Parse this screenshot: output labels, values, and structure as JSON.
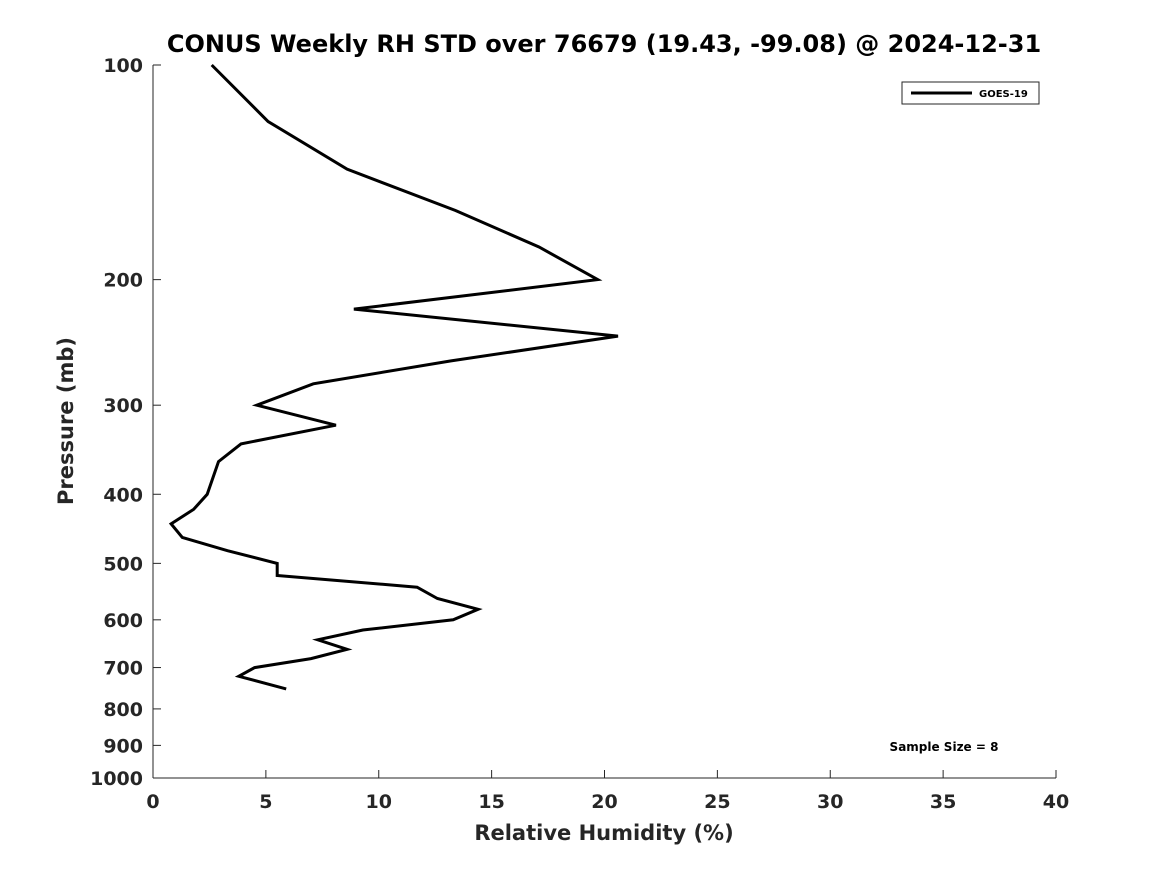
{
  "chart_data": {
    "type": "line",
    "title": "CONUS Weekly RH STD over 76679 (19.43, -99.08) @ 2024-12-31",
    "xlabel": "Relative Humidity (%)",
    "ylabel": "Pressure (mb)",
    "xlim": [
      0,
      40
    ],
    "ylim": [
      100,
      1000
    ],
    "yscale": "log",
    "y_reversed": true,
    "grid": false,
    "xticks": [
      "0",
      "5",
      "10",
      "15",
      "20",
      "25",
      "30",
      "35",
      "40"
    ],
    "yticks": [
      "100",
      "200",
      "300",
      "400",
      "500",
      "600",
      "700",
      "800",
      "900",
      "1000"
    ],
    "legend_position": "top-right",
    "series": [
      {
        "name": "GOES-19",
        "color": "#000000",
        "x": [
          2.6,
          5.1,
          8.6,
          13.4,
          17.1,
          19.7,
          8.9,
          20.6,
          13.2,
          7.1,
          4.6,
          8.1,
          3.9,
          2.9,
          2.4,
          1.8,
          0.8,
          1.3,
          3.3,
          5.5,
          5.5,
          11.7,
          12.6,
          14.4,
          13.3,
          9.3,
          7.3,
          8.6,
          7.0,
          4.5,
          3.8,
          5.9
        ],
        "y": [
          100,
          120,
          140,
          160,
          180,
          200,
          220,
          240,
          260,
          280,
          300,
          320,
          340,
          360,
          400,
          420,
          440,
          460,
          480,
          500,
          520,
          540,
          560,
          580,
          600,
          620,
          640,
          660,
          680,
          700,
          720,
          750
        ]
      }
    ],
    "annotations": [
      "Sample Size = 8"
    ]
  }
}
